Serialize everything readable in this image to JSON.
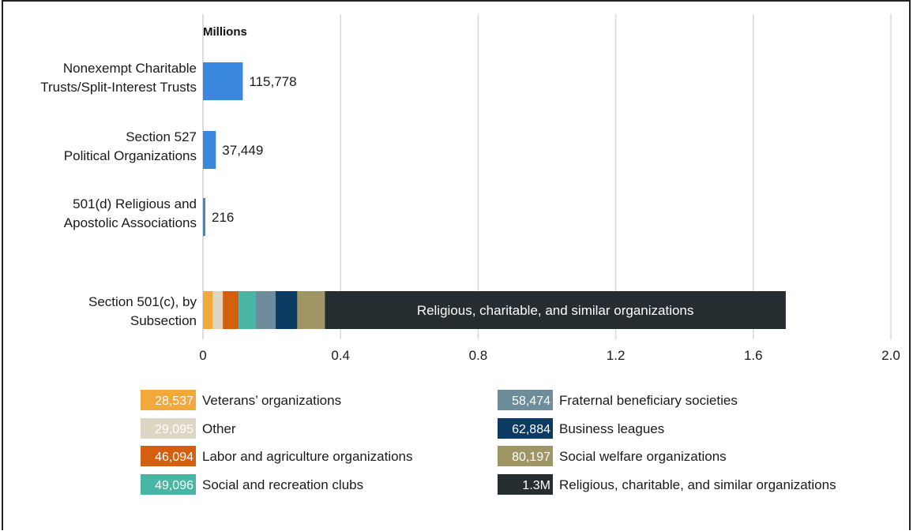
{
  "chart_data": {
    "type": "bar",
    "orientation": "horizontal",
    "unit_label": "Millions",
    "xlim": [
      0,
      2.0
    ],
    "x_ticks": [
      "0",
      "0.4",
      "0.8",
      "1.2",
      "1.6",
      "2.0"
    ],
    "x_tick_values": [
      0,
      0.4,
      0.8,
      1.2,
      1.6,
      2.0
    ],
    "grid": "vertical",
    "categories": [
      {
        "label_lines": [
          "Nonexempt Charitable",
          "Trusts/Split-Interest Trusts"
        ],
        "value": 115778,
        "value_label": "115,778",
        "color": "#3a87df"
      },
      {
        "label_lines": [
          "Section 527",
          "Political Organizations"
        ],
        "value": 37449,
        "value_label": "37,449",
        "color": "#3a87df"
      },
      {
        "label_lines": [
          "501(d) Religious and",
          "Apostolic Associations"
        ],
        "value": 216,
        "value_label": "216",
        "color": "#3a87df"
      }
    ],
    "stacked": {
      "label_lines": [
        "Section 501(c), by",
        "Subsection"
      ],
      "inbar_label": "Religious, charitable, and similar organizations",
      "segments": [
        {
          "name": "Veterans’ organizations",
          "value": 28537,
          "value_label": "28,537",
          "color": "#f2a93b"
        },
        {
          "name": "Other",
          "value": 29095,
          "value_label": "29,095",
          "color": "#ddd6c2"
        },
        {
          "name": "Labor and agriculture organizations",
          "value": 46094,
          "value_label": "46,094",
          "color": "#d4600f"
        },
        {
          "name": "Social and recreation clubs",
          "value": 49096,
          "value_label": "49,096",
          "color": "#49b6a4"
        },
        {
          "name": "Fraternal beneficiary societies",
          "value": 58474,
          "value_label": "58,474",
          "color": "#6e8d9c"
        },
        {
          "name": "Business leagues",
          "value": 62884,
          "value_label": "62,884",
          "color": "#0b3a63"
        },
        {
          "name": "Social welfare organizations",
          "value": 80197,
          "value_label": "80,197",
          "color": "#a09565"
        },
        {
          "name": "Religious, charitable, and similar organizations",
          "value": 1340000,
          "value_label": "1.3M",
          "color": "#252d30"
        }
      ]
    },
    "legend": {
      "placement": "bottom",
      "columns": 2
    }
  }
}
